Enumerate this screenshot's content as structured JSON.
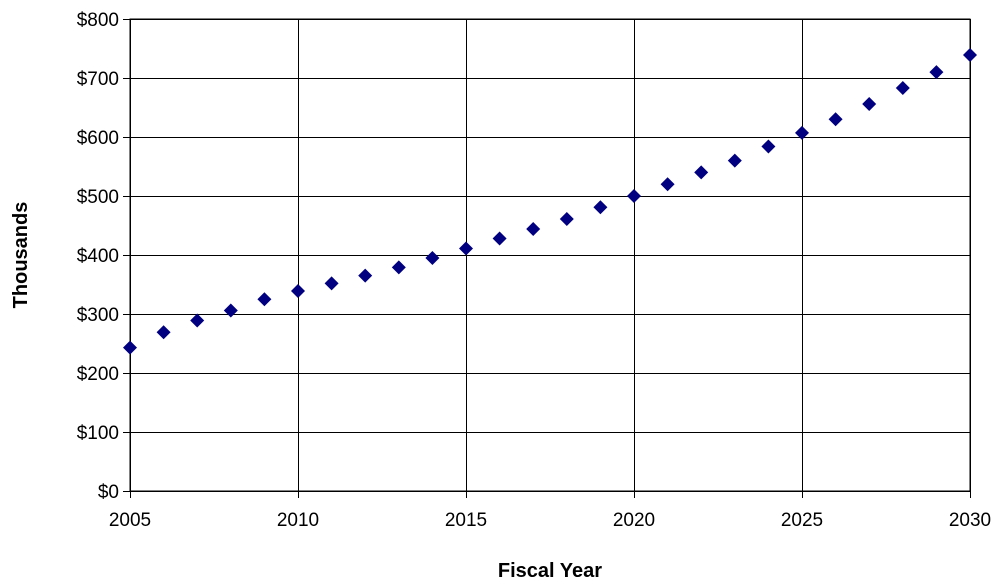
{
  "chart_data": {
    "type": "scatter",
    "title": "",
    "xlabel": "Fiscal Year",
    "ylabel": "Thousands",
    "xlim": [
      2005,
      2030
    ],
    "ylim": [
      0,
      800
    ],
    "x_ticks": [
      "2005",
      "2010",
      "2015",
      "2020",
      "2025",
      "2030"
    ],
    "y_ticks": [
      "$0",
      "$100",
      "$200",
      "$300",
      "$400",
      "$500",
      "$600",
      "$700",
      "$800"
    ],
    "grid": true,
    "legend": "none",
    "marker": "diamond",
    "marker_color": "#000080",
    "series": [
      {
        "x": [
          2005,
          2006,
          2007,
          2008,
          2009,
          2010,
          2011,
          2012,
          2013,
          2014,
          2015,
          2016,
          2017,
          2018,
          2019,
          2020,
          2021,
          2022,
          2023,
          2024,
          2025,
          2026,
          2027,
          2028,
          2029,
          2030
        ],
        "y": [
          243,
          269,
          289,
          306,
          325,
          339,
          352,
          365,
          379,
          395,
          411,
          428,
          444,
          461,
          481,
          500,
          520,
          540,
          560,
          584,
          607,
          630,
          656,
          683,
          710,
          739
        ]
      }
    ]
  }
}
